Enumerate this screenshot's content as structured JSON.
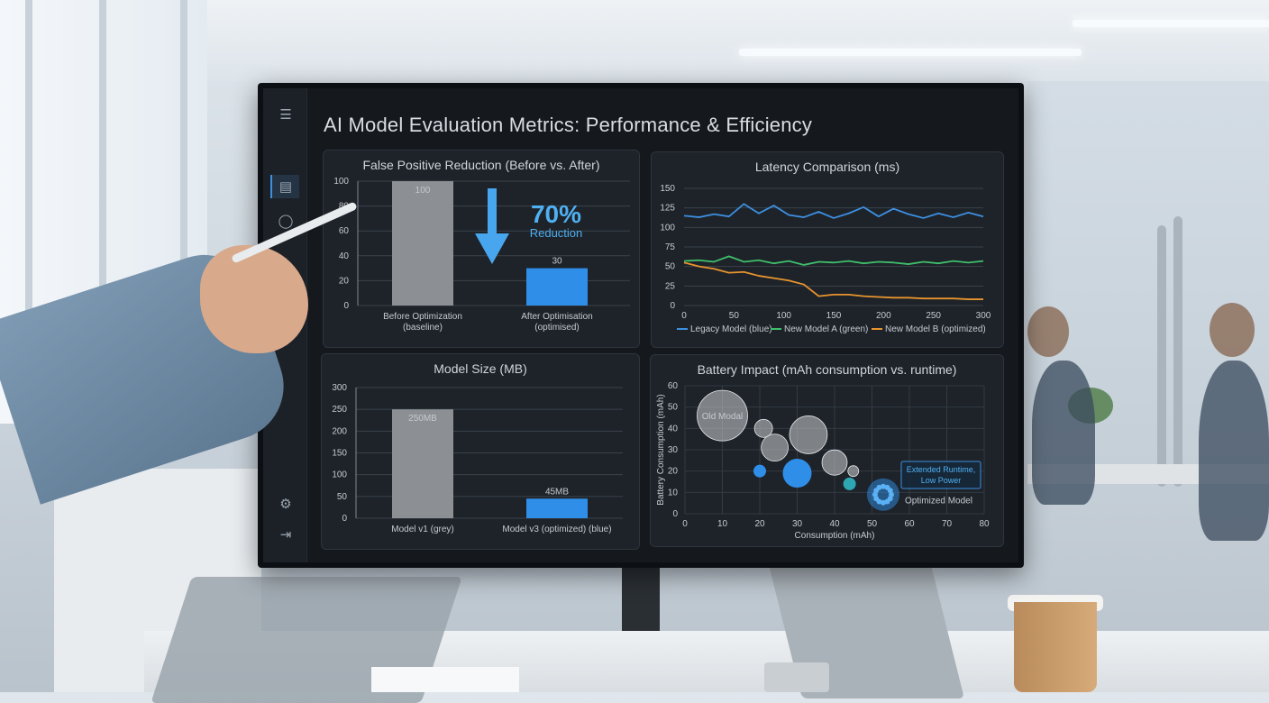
{
  "dashboard": {
    "title": "AI Model Evaluation Metrics: Performance & Efficiency"
  },
  "sidebar": {
    "icons": [
      "menu-icon",
      "dashboard-icon",
      "chat-icon",
      "settings-icon",
      "logout-icon"
    ]
  },
  "false_positive": {
    "title": "False Positive Reduction (Before vs. After)",
    "highlight_value": "70%",
    "highlight_label": "Reduction",
    "chart_data": {
      "type": "bar",
      "categories": [
        "Before Optimization",
        "After Optimisation"
      ],
      "category_sublabels": [
        "(baseline)",
        "(optimised)"
      ],
      "values": [
        100,
        30
      ],
      "value_labels": [
        "100",
        "30"
      ],
      "ylim": [
        0,
        100
      ],
      "yticks": [
        0,
        20,
        40,
        60,
        80,
        100
      ],
      "colors": [
        "#8c8f93",
        "#2f8fe8"
      ]
    }
  },
  "latency": {
    "title": "Latency Comparison (ms)",
    "chart_data": {
      "type": "line",
      "xlim": [
        0,
        300
      ],
      "ylim": [
        0,
        150
      ],
      "xticks": [
        0,
        50,
        100,
        150,
        200,
        250,
        300
      ],
      "yticks": [
        0,
        25,
        50,
        75,
        100,
        125,
        150
      ],
      "x": [
        0,
        15,
        30,
        45,
        60,
        75,
        90,
        105,
        120,
        135,
        150,
        165,
        180,
        195,
        210,
        225,
        240,
        255,
        270,
        285,
        300
      ],
      "series": [
        {
          "name": "Legacy Model (blue)",
          "color": "#3d8fe0",
          "values": [
            115,
            113,
            117,
            114,
            130,
            118,
            128,
            116,
            113,
            120,
            112,
            118,
            126,
            114,
            124,
            117,
            112,
            118,
            113,
            119,
            114
          ]
        },
        {
          "name": "New Model A (green)",
          "color": "#3fbf6b",
          "values": [
            57,
            58,
            56,
            63,
            56,
            58,
            54,
            57,
            52,
            56,
            55,
            57,
            54,
            56,
            55,
            53,
            56,
            54,
            57,
            55,
            57
          ]
        },
        {
          "name": "New Model B (optimized)",
          "color": "#e8942e",
          "values": [
            55,
            50,
            47,
            42,
            43,
            38,
            35,
            32,
            27,
            12,
            14,
            14,
            12,
            11,
            10,
            10,
            9,
            9,
            9,
            8,
            8
          ]
        }
      ]
    }
  },
  "model_size": {
    "title": "Model Size (MB)",
    "chart_data": {
      "type": "bar",
      "categories": [
        "Model v1 (grey)",
        "Model v3 (optimized) (blue)"
      ],
      "values": [
        250,
        45
      ],
      "value_labels": [
        "250MB",
        "45MB"
      ],
      "ylim": [
        0,
        300
      ],
      "yticks": [
        0,
        50,
        100,
        150,
        200,
        250,
        300
      ],
      "colors": [
        "#8c8f93",
        "#2f8fe8"
      ]
    }
  },
  "battery": {
    "title": "Battery Impact (mAh consumption vs. runtime)",
    "chart_data": {
      "type": "scatter",
      "xlabel": "Consumption (mAh)",
      "ylabel": "Battery Consumption (mAh)",
      "xlim": [
        0,
        80
      ],
      "ylim": [
        0,
        60
      ],
      "xticks": [
        0,
        10,
        20,
        30,
        40,
        50,
        60,
        70,
        80
      ],
      "yticks": [
        0,
        10,
        20,
        30,
        40,
        50,
        60
      ],
      "points": [
        {
          "x": 10,
          "y": 46,
          "r": 14,
          "kind": "grey",
          "label": "Old Modal"
        },
        {
          "x": 21,
          "y": 40,
          "r": 5,
          "kind": "grey",
          "label": ""
        },
        {
          "x": 24,
          "y": 31,
          "r": 7.5,
          "kind": "grey",
          "label": ""
        },
        {
          "x": 33,
          "y": 37,
          "r": 10.5,
          "kind": "grey",
          "label": ""
        },
        {
          "x": 40,
          "y": 24,
          "r": 7,
          "kind": "grey",
          "label": ""
        },
        {
          "x": 45,
          "y": 20,
          "r": 3,
          "kind": "grey",
          "label": ""
        },
        {
          "x": 20,
          "y": 20,
          "r": 3.5,
          "kind": "blue",
          "label": ""
        },
        {
          "x": 30,
          "y": 19,
          "r": 8,
          "kind": "blue",
          "label": ""
        },
        {
          "x": 44,
          "y": 14,
          "r": 3.5,
          "kind": "teal",
          "label": ""
        },
        {
          "x": 53,
          "y": 9,
          "r": 8,
          "kind": "cluster",
          "label": "Optimized Model"
        }
      ],
      "callout": "Extended Runtime, Low Power"
    }
  }
}
